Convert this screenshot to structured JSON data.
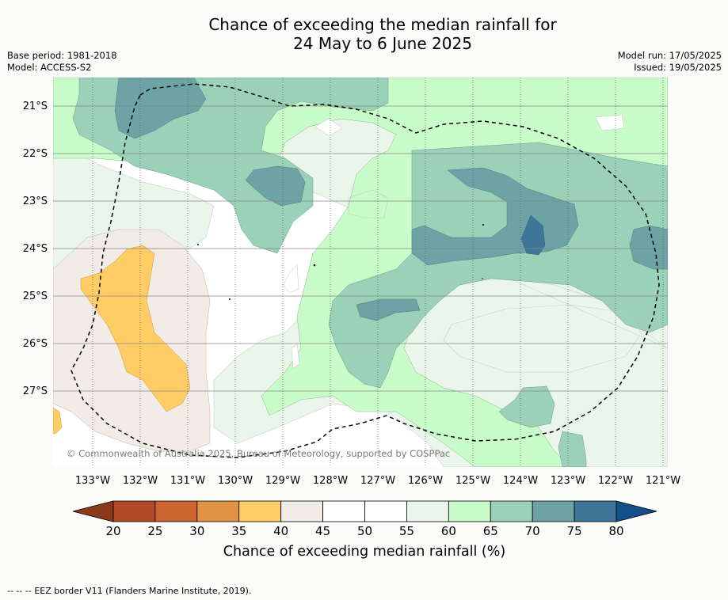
{
  "title_line1": "Chance of exceeding the median rainfall for",
  "title_line2": "24 May to 6 June 2025",
  "base_period": "Base period: 1981-2018",
  "model": "Model: ACCESS-S2",
  "model_run": "Model run: 17/05/2025",
  "issued": "Issued: 19/05/2025",
  "copyright": "© Commonwealth of Australia 2025, Bureau of Meteorology, supported by COSPPac",
  "lat_labels": [
    "21°S",
    "22°S",
    "23°S",
    "24°S",
    "25°S",
    "26°S",
    "27°S"
  ],
  "lon_labels": [
    "133°W",
    "132°W",
    "131°W",
    "130°W",
    "129°W",
    "128°W",
    "127°W",
    "126°W",
    "125°W",
    "124°W",
    "123°W",
    "122°W",
    "121°W"
  ],
  "colorbar": {
    "ticks": [
      "20",
      "25",
      "30",
      "35",
      "40",
      "45",
      "50",
      "55",
      "60",
      "65",
      "70",
      "75",
      "80"
    ],
    "colors": [
      "#b04a27",
      "#cd6533",
      "#e09342",
      "#ffcc66",
      "#f2ece7",
      "#ffffff",
      "#ffffff",
      "#ebf6ea",
      "#c8fcc8",
      "#9bd1b9",
      "#6ea3a6",
      "#3f7599"
    ],
    "under_color": "#8c3a1d",
    "over_color": "#134f8a",
    "label": "Chance of exceeding median rainfall (%)"
  },
  "legend_border": "EEZ border V11 (Flanders Marine Institute, 2019).",
  "legend_border_symbol": "-- -- --"
}
